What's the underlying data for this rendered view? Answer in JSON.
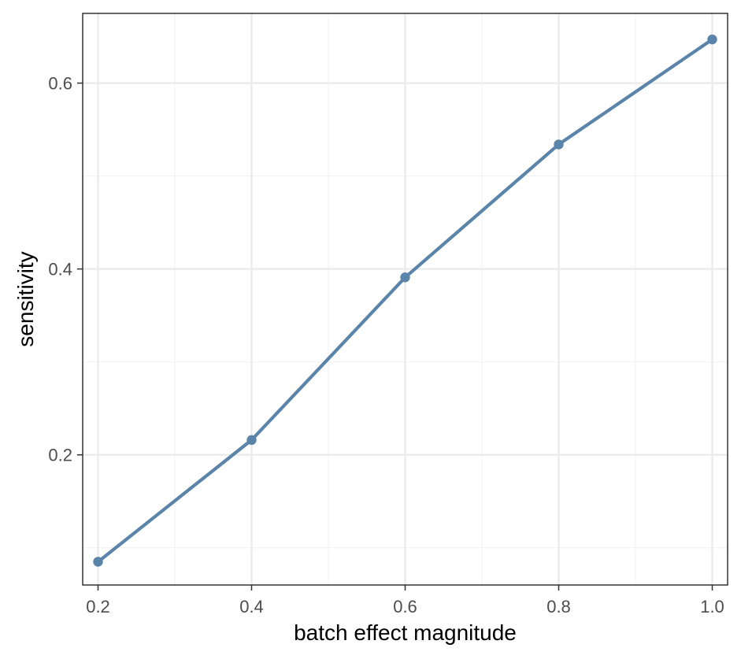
{
  "chart_data": {
    "type": "line",
    "title": "",
    "xlabel": "batch effect magnitude",
    "ylabel": "sensitivity",
    "xlim": [
      0.18,
      1.02
    ],
    "ylim": [
      0.06,
      0.675
    ],
    "x_ticks": [
      0.2,
      0.4,
      0.6,
      0.8,
      1.0
    ],
    "x_tick_labels": [
      "0.2",
      "0.4",
      "0.6",
      "0.8",
      "1.0"
    ],
    "y_ticks": [
      0.2,
      0.4,
      0.6
    ],
    "y_tick_labels": [
      "0.2",
      "0.4",
      "0.6"
    ],
    "x_minor_ticks": [
      0.3,
      0.5,
      0.7,
      0.9
    ],
    "y_minor_ticks": [
      0.1,
      0.3,
      0.5
    ],
    "grid": true,
    "legend": "none",
    "series": [
      {
        "color": "#5b84aa",
        "x": [
          0.2,
          0.4,
          0.6,
          0.8,
          1.0
        ],
        "y": [
          0.085,
          0.216,
          0.391,
          0.534,
          0.647
        ]
      }
    ]
  },
  "colors": {
    "background": "#ffffff",
    "panel_border": "#333333",
    "grid_major": "#ebebeb",
    "grid_minor": "#f2f2f2",
    "tick_text": "#4d4d4d"
  }
}
